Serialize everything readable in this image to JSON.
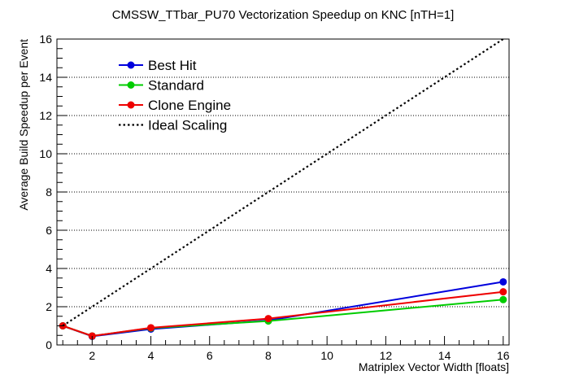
{
  "chart_data": {
    "type": "line",
    "title": "CMSSW_TTbar_PU70 Vectorization Speedup on KNC [nTH=1]",
    "xlabel": "Matriplex Vector Width [floats]",
    "ylabel": "Average Build Speedup per Event",
    "xlim": [
      0.8,
      16.2
    ],
    "ylim": [
      0,
      16
    ],
    "x_ticks": [
      2,
      4,
      6,
      8,
      10,
      12,
      14,
      16
    ],
    "y_ticks": [
      0,
      2,
      4,
      6,
      8,
      10,
      12,
      14,
      16
    ],
    "grid": "horizontal dotted",
    "legend_position": "top-left",
    "series": [
      {
        "name": "Best Hit",
        "color": "#0000dd",
        "x": [
          1,
          2,
          4,
          8,
          16
        ],
        "y": [
          1.0,
          0.45,
          0.83,
          1.28,
          3.3
        ]
      },
      {
        "name": "Standard",
        "color": "#00cc00",
        "x": [
          1,
          2,
          4,
          8,
          16
        ],
        "y": [
          1.0,
          0.47,
          0.88,
          1.25,
          2.37
        ]
      },
      {
        "name": "Clone Engine",
        "color": "#ee0000",
        "x": [
          1,
          2,
          4,
          8,
          16
        ],
        "y": [
          1.0,
          0.47,
          0.9,
          1.38,
          2.78
        ]
      },
      {
        "name": "Ideal Scaling",
        "color": "#000000",
        "style": "dotted",
        "x": [
          1,
          16
        ],
        "y": [
          1,
          16
        ]
      }
    ]
  }
}
